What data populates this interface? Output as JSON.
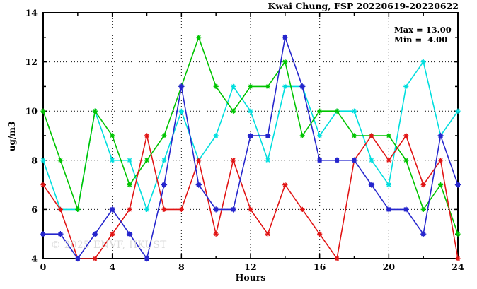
{
  "title": "Kwai Chung, FSP 20220619-20220622",
  "annotation": {
    "max_label": "Max = 13.00",
    "min_label": "Min =  4.00"
  },
  "watermark": "© 2025 ENVF, HKUST",
  "chart_data": {
    "type": "line",
    "title": "Kwai Chung, FSP 20220619-20220622",
    "xlabel": "Hours",
    "ylabel": "ug/m3",
    "xlim": [
      0,
      24
    ],
    "ylim": [
      4,
      14
    ],
    "grid": true,
    "legend_position": "none",
    "xticks_major": [
      0,
      4,
      8,
      12,
      16,
      20,
      24
    ],
    "xticks_minor": [
      2,
      6,
      10,
      14,
      18,
      22
    ],
    "yticks_major": [
      4,
      6,
      8,
      10,
      12,
      14
    ],
    "yticks_minor": [
      5,
      7,
      9,
      11,
      13
    ],
    "x": [
      0,
      1,
      2,
      3,
      4,
      5,
      6,
      7,
      8,
      9,
      10,
      11,
      12,
      13,
      14,
      15,
      16,
      17,
      18,
      19,
      20,
      21,
      22,
      23,
      24
    ],
    "series": [
      {
        "name": "cyan-series",
        "color": "#00dede",
        "marker": "asterisk",
        "values": [
          8,
          6,
          6,
          10,
          8,
          8,
          6,
          8,
          10,
          8,
          9,
          11,
          10,
          8,
          11,
          11,
          9,
          10,
          10,
          8,
          7,
          11,
          12,
          9,
          10
        ]
      },
      {
        "name": "green-series",
        "color": "#00c400",
        "marker": "asterisk",
        "values": [
          10,
          8,
          6,
          10,
          9,
          7,
          8,
          9,
          11,
          13,
          11,
          10,
          11,
          11,
          12,
          9,
          10,
          10,
          9,
          9,
          9,
          8,
          6,
          7,
          5
        ]
      },
      {
        "name": "red-series",
        "color": "#e11414",
        "marker": "asterisk",
        "values": [
          7,
          6,
          4,
          4,
          5,
          6,
          9,
          6,
          6,
          8,
          5,
          8,
          6,
          5,
          7,
          6,
          5,
          4,
          8,
          9,
          8,
          9,
          7,
          8,
          4
        ]
      },
      {
        "name": "blue-series",
        "color": "#2626cd",
        "marker": "square",
        "values": [
          5,
          5,
          4,
          5,
          6,
          5,
          4,
          7,
          11,
          7,
          6,
          6,
          9,
          9,
          13,
          11,
          8,
          8,
          8,
          7,
          6,
          6,
          5,
          9,
          7
        ]
      }
    ],
    "stats": {
      "max": 13.0,
      "min": 4.0
    }
  }
}
